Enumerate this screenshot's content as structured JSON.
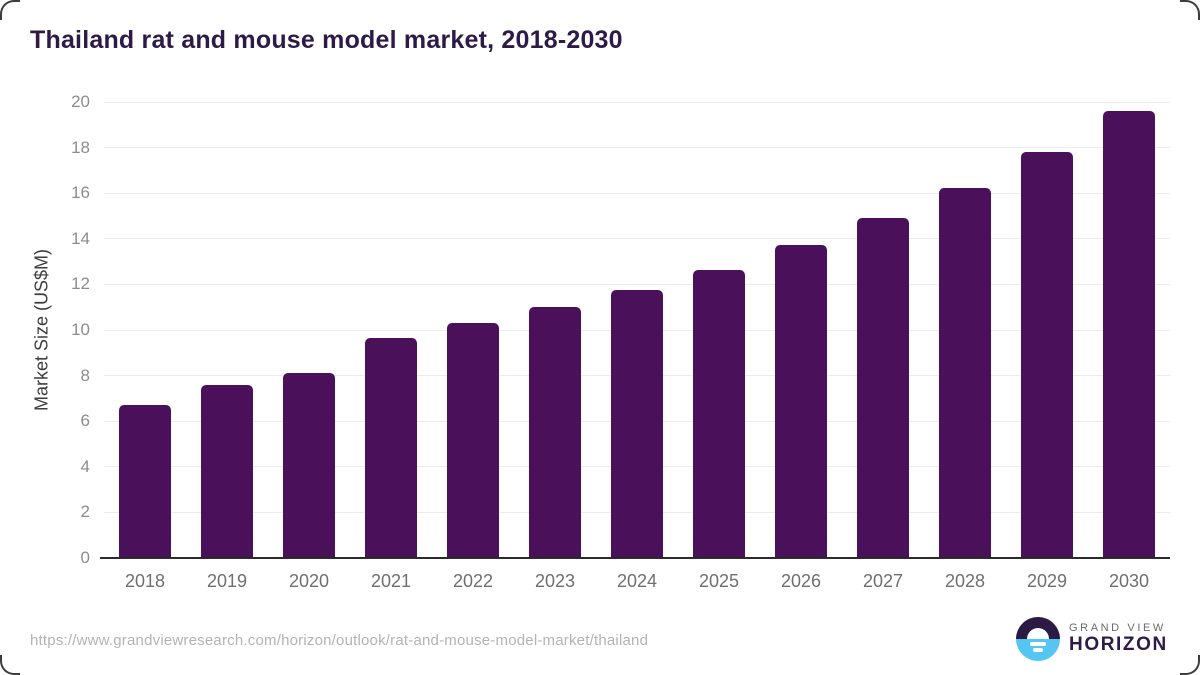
{
  "title": "Thailand rat and mouse model market, 2018-2030",
  "chart_data": {
    "type": "bar",
    "categories": [
      "2018",
      "2019",
      "2020",
      "2021",
      "2022",
      "2023",
      "2024",
      "2025",
      "2026",
      "2027",
      "2028",
      "2029",
      "2030"
    ],
    "values": [
      6.7,
      7.6,
      8.1,
      9.65,
      10.3,
      11.0,
      11.75,
      12.65,
      13.75,
      14.9,
      16.25,
      17.8,
      19.6
    ],
    "title": "Thailand rat and mouse model market, 2018-2030",
    "xlabel": "",
    "ylabel": "Market Size (US$M)",
    "ylim": [
      0,
      20
    ],
    "ytick_step": 2,
    "yticks": [
      0,
      2,
      4,
      6,
      8,
      10,
      12,
      14,
      16,
      18,
      20
    ],
    "grid": true,
    "legend": false,
    "bar_color": "#4a1059",
    "gridline_color": "#ececec",
    "axis_color": "#2b2b2b",
    "title_color": "#2e1a47"
  },
  "footer": {
    "source_url": "https://www.grandviewresearch.com/horizon/outlook/rat-and-mouse-model-market/thailand",
    "logo": {
      "icon": "horizon-sunrise-icon",
      "line1": "GRAND VIEW",
      "line2": "HORIZON",
      "icon_top_color": "#2b1b44",
      "icon_bottom_color": "#55c6f1",
      "wordmark_color": "#2e1a47"
    }
  }
}
